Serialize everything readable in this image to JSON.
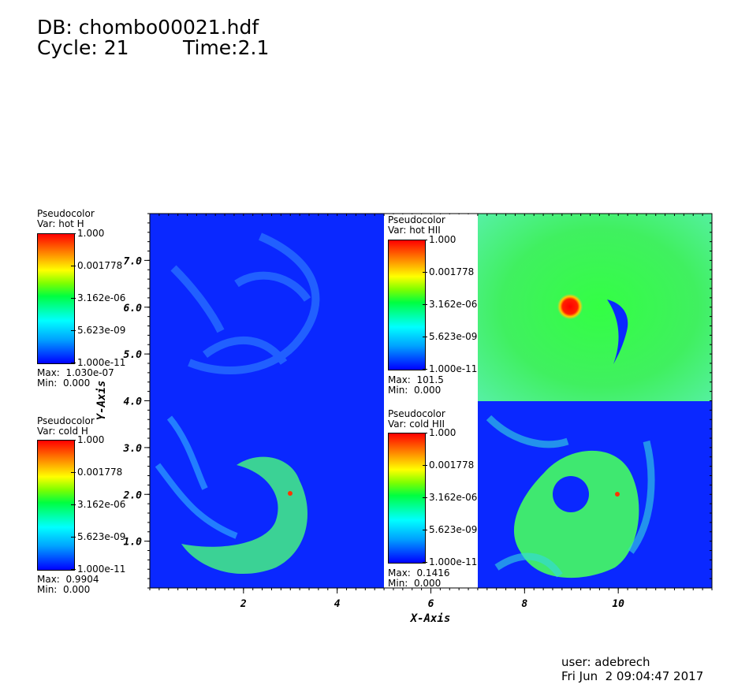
{
  "header": {
    "db": "DB: chombo00021.hdf",
    "cycle": "Cycle: 21",
    "time": "Time:2.1"
  },
  "footer": {
    "user": "user: adebrech",
    "date": "Fri Jun  2 09:04:47 2017"
  },
  "legends": [
    {
      "title": "Pseudocolor",
      "var": "Var: hot H",
      "max": "Max:  1.030e-07",
      "min": "Min:  0.000"
    },
    {
      "title": "Pseudocolor",
      "var": "Var: cold H",
      "max": "Max:  0.9904",
      "min": "Min:  0.000"
    },
    {
      "title": "Pseudocolor",
      "var": "Var: hot HII",
      "max": "Max:  101.5",
      "min": "Min:  0.000"
    },
    {
      "title": "Pseudocolor",
      "var": "Var: cold HII",
      "max": "Max:  0.1416",
      "min": "Min:  0.000"
    }
  ],
  "colorbar_ticks": [
    "1.000",
    "0.001778",
    "3.162e-06",
    "5.623e-09",
    "1.000e-11"
  ],
  "colors": {
    "low": "#0000ff",
    "mid": "#00ff40",
    "high": "#ff0000",
    "background": "#ffffff"
  },
  "chart_data": {
    "type": "heatmap",
    "xlabel": "X-Axis",
    "ylabel": "Y-Axis",
    "xlim": [
      0,
      12
    ],
    "ylim": [
      0,
      8
    ],
    "x_ticks": [
      "2",
      "4",
      "6",
      "8",
      "10"
    ],
    "x_tick_values": [
      2,
      4,
      6,
      8,
      10
    ],
    "y_ticks": [
      "1.0",
      "2.0",
      "3.0",
      "4.0",
      "5.0",
      "6.0",
      "7.0"
    ],
    "y_tick_values": [
      1,
      2,
      3,
      4,
      5,
      6,
      7
    ],
    "panels": [
      {
        "var": "hot H",
        "x_range": [
          0,
          6
        ],
        "y_range": [
          4,
          8
        ],
        "max": 1.03e-07,
        "min": 0
      },
      {
        "var": "hot HII",
        "x_range": [
          6,
          12
        ],
        "y_range": [
          4,
          8
        ],
        "max": 101.5,
        "min": 0
      },
      {
        "var": "cold H",
        "x_range": [
          0,
          6
        ],
        "y_range": [
          0,
          4
        ],
        "max": 0.9904,
        "min": 0
      },
      {
        "var": "cold HII",
        "x_range": [
          6,
          12
        ],
        "y_range": [
          0,
          4
        ],
        "max": 0.1416,
        "min": 0
      }
    ],
    "colorbar": {
      "scale": "log",
      "range": [
        1e-11,
        1.0
      ],
      "ticks": [
        1.0,
        0.001778,
        3.162e-06,
        5.623e-09,
        1e-11
      ]
    }
  }
}
